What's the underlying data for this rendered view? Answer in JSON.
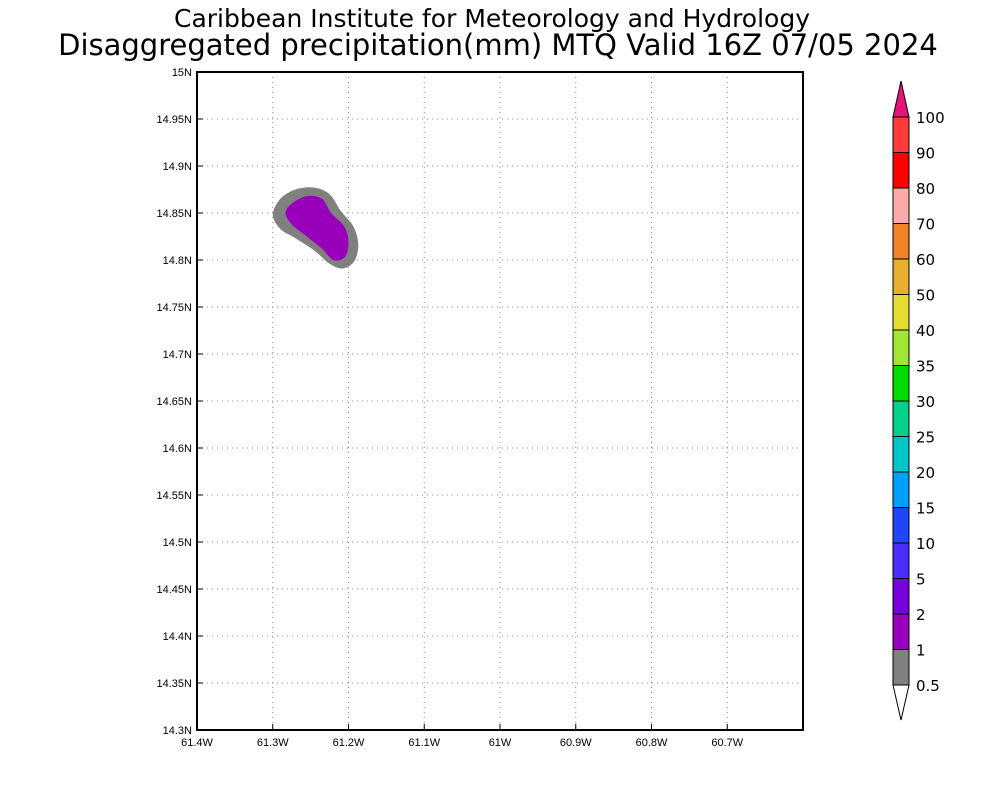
{
  "header": {
    "line1": "Caribbean Institute for Meteorology and Hydrology",
    "line2": "Disaggregated precipitation(mm) MTQ Valid 16Z 07/05 2024"
  },
  "map": {
    "lon_range": [
      -61.4,
      -60.6
    ],
    "lat_range": [
      14.3,
      15.0
    ],
    "lon_ticks": [
      {
        "v": -61.4,
        "label": "61.4W"
      },
      {
        "v": -61.3,
        "label": "61.3W"
      },
      {
        "v": -61.2,
        "label": "61.2W"
      },
      {
        "v": -61.1,
        "label": "61.1W"
      },
      {
        "v": -61.0,
        "label": "61W"
      },
      {
        "v": -60.9,
        "label": "60.9W"
      },
      {
        "v": -60.8,
        "label": "60.8W"
      },
      {
        "v": -60.7,
        "label": "60.7W"
      }
    ],
    "lat_ticks": [
      {
        "v": 14.3,
        "label": "14.3N"
      },
      {
        "v": 14.35,
        "label": "14.35N"
      },
      {
        "v": 14.4,
        "label": "14.4N"
      },
      {
        "v": 14.45,
        "label": "14.45N"
      },
      {
        "v": 14.5,
        "label": "14.5N"
      },
      {
        "v": 14.55,
        "label": "14.55N"
      },
      {
        "v": 14.6,
        "label": "14.6N"
      },
      {
        "v": 14.65,
        "label": "14.65N"
      },
      {
        "v": 14.7,
        "label": "14.7N"
      },
      {
        "v": 14.75,
        "label": "14.75N"
      },
      {
        "v": 14.8,
        "label": "14.8N"
      },
      {
        "v": 14.85,
        "label": "14.85N"
      },
      {
        "v": 14.9,
        "label": "14.9N"
      },
      {
        "v": 14.95,
        "label": "14.95N"
      },
      {
        "v": 15.0,
        "label": "15N"
      }
    ],
    "gridlines": "dotted",
    "precip_areas": [
      {
        "level": "0.5-1",
        "color": "#808080",
        "points": [
          [
            -61.29,
            14.865
          ],
          [
            -61.27,
            14.875
          ],
          [
            -61.245,
            14.877
          ],
          [
            -61.225,
            14.87
          ],
          [
            -61.21,
            14.852
          ],
          [
            -61.193,
            14.835
          ],
          [
            -61.187,
            14.815
          ],
          [
            -61.193,
            14.798
          ],
          [
            -61.208,
            14.791
          ],
          [
            -61.225,
            14.796
          ],
          [
            -61.245,
            14.81
          ],
          [
            -61.272,
            14.824
          ],
          [
            -61.29,
            14.833
          ],
          [
            -61.3,
            14.848
          ]
        ]
      },
      {
        "level": "1-2",
        "color": "#9900bb",
        "points": [
          [
            -61.275,
            14.86
          ],
          [
            -61.255,
            14.868
          ],
          [
            -61.235,
            14.865
          ],
          [
            -61.223,
            14.85
          ],
          [
            -61.205,
            14.835
          ],
          [
            -61.2,
            14.818
          ],
          [
            -61.205,
            14.803
          ],
          [
            -61.22,
            14.8
          ],
          [
            -61.235,
            14.812
          ],
          [
            -61.255,
            14.825
          ],
          [
            -61.275,
            14.838
          ],
          [
            -61.283,
            14.85
          ]
        ]
      }
    ]
  },
  "colorbar": {
    "colors": [
      "#808080",
      "#9900bb",
      "#7700dd",
      "#4b2dff",
      "#2244ff",
      "#00a0ff",
      "#00c8c8",
      "#00d28c",
      "#00dc00",
      "#a0e632",
      "#e6dc32",
      "#e6af2d",
      "#f08228",
      "#ffaaaa",
      "#ff0000",
      "#ff3a3a"
    ],
    "top_arrow_color": "#e6147a",
    "labels": [
      "0.5",
      "1",
      "2",
      "5",
      "10",
      "15",
      "20",
      "25",
      "30",
      "35",
      "40",
      "50",
      "60",
      "70",
      "80",
      "90",
      "100"
    ]
  }
}
